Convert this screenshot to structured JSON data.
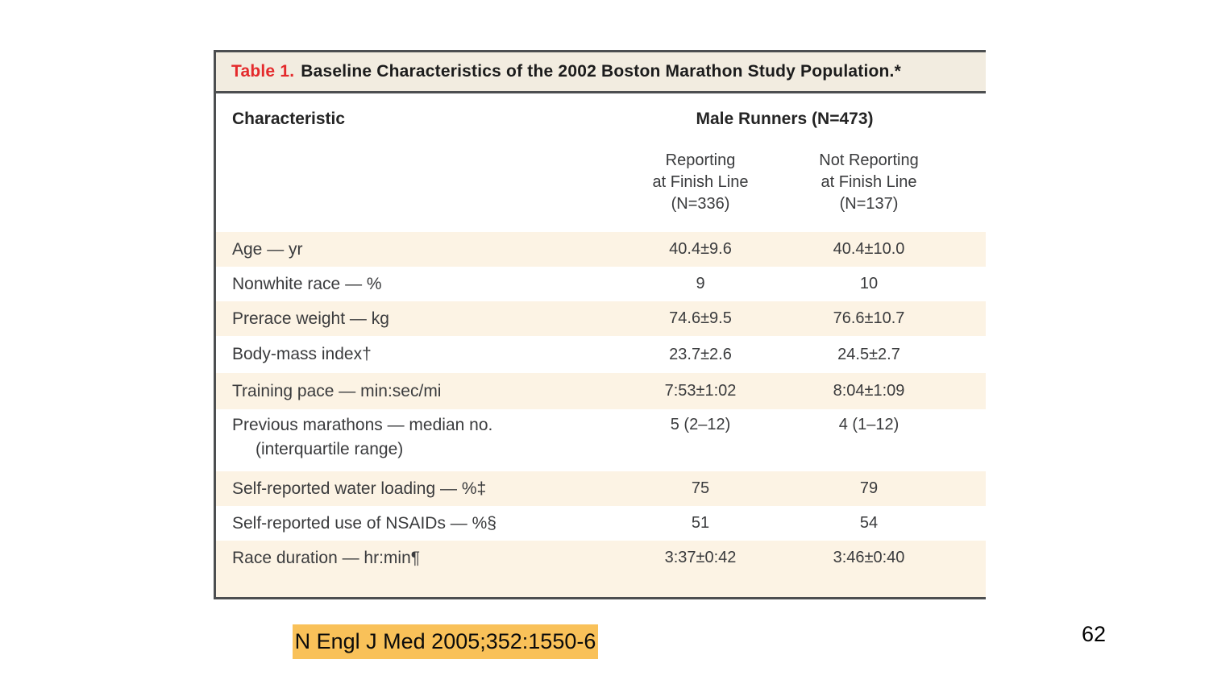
{
  "table": {
    "title": {
      "label": "Table 1.",
      "text": "Baseline Characteristics of the 2002 Boston Marathon Study Population.*"
    },
    "header": {
      "characteristic": "Characteristic",
      "group": "Male Runners (N=473)",
      "col1": {
        "line1": "Reporting",
        "line2": "at Finish Line",
        "line3": "(N=336)"
      },
      "col2": {
        "line1": "Not Reporting",
        "line2": "at Finish Line",
        "line3": "(N=137)"
      }
    },
    "rows": [
      {
        "label": "Age — yr",
        "v1": "40.4±9.6",
        "v2": "40.4±10.0"
      },
      {
        "label": "Nonwhite race — %",
        "v1": "9",
        "v2": "10"
      },
      {
        "label": "Prerace weight — kg",
        "v1": "74.6±9.5",
        "v2": "76.6±10.7"
      },
      {
        "label": "Body-mass index†",
        "v1": "23.7±2.6",
        "v2": "24.5±2.7"
      },
      {
        "label": "Training pace — min:sec/mi",
        "v1": "7:53±1:02",
        "v2": "8:04±1:09"
      },
      {
        "label": "Previous marathons — median no.",
        "label2": "(interquartile range)",
        "v1": "5 (2–12)",
        "v2": "4 (1–12)"
      },
      {
        "label": "Self-reported water loading — %‡",
        "v1": "75",
        "v2": "79"
      },
      {
        "label": "Self-reported use of NSAIDs — %§",
        "v1": "51",
        "v2": "54"
      },
      {
        "label": "Race duration — hr:min¶",
        "v1": "3:37±0:42",
        "v2": "3:46±0:40"
      }
    ]
  },
  "footer": {
    "citation": "N Engl J Med 2005;352:1550-6",
    "page_number": "62"
  },
  "colors": {
    "red": "#e42a2c",
    "band": "#f2ece0",
    "shade": "#fcf3e4",
    "border": "#4c4e50",
    "badge": "#f9c159"
  }
}
